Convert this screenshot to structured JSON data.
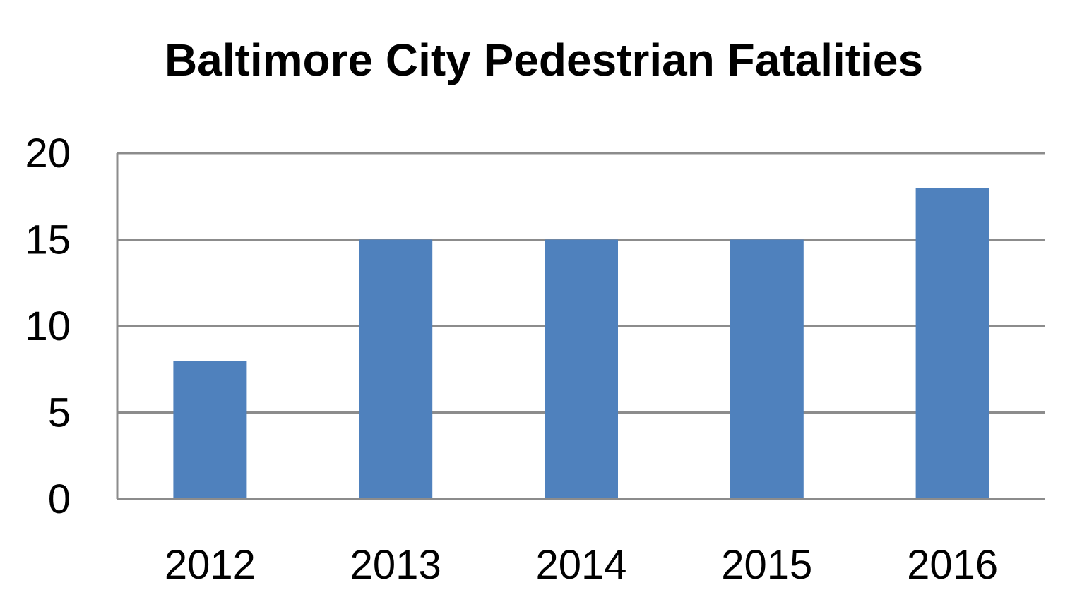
{
  "chart_data": {
    "type": "bar",
    "title": "Baltimore City Pedestrian Fatalities",
    "xlabel": "",
    "ylabel": "",
    "categories": [
      "2012",
      "2013",
      "2014",
      "2015",
      "2016"
    ],
    "values": [
      8,
      15,
      15,
      15,
      18
    ],
    "ylim": [
      0,
      20
    ],
    "yticks": [
      "0",
      "5",
      "10",
      "15",
      "20"
    ],
    "grid": true,
    "legend": "none",
    "colors": {
      "bar": "#4f81bd",
      "grid": "#8c8c8c",
      "text": "#000000"
    }
  }
}
